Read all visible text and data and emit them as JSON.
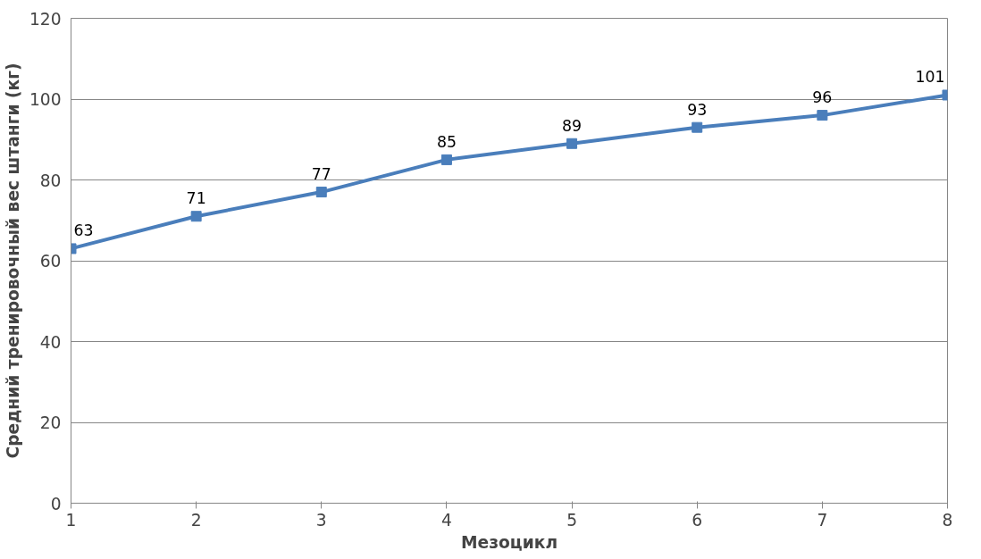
{
  "chart_data": {
    "type": "line",
    "xlabel": "Мезоцикл",
    "ylabel": "Средний тренировочный вес штанги (кг)",
    "x": [
      1,
      2,
      3,
      4,
      5,
      6,
      7,
      8
    ],
    "series": [
      {
        "color": "#4a7ebb",
        "values": [
          63,
          71,
          77,
          85,
          89,
          93,
          96,
          101
        ]
      }
    ],
    "xlim": [
      1,
      8
    ],
    "xticks": [
      1,
      2,
      3,
      4,
      5,
      6,
      7,
      8
    ],
    "ylim": [
      0,
      120
    ],
    "yticks": [
      0,
      20,
      40,
      60,
      80,
      100,
      120
    ],
    "grid": "y",
    "marker": "square",
    "line_style": "solid",
    "data_labels": true
  }
}
